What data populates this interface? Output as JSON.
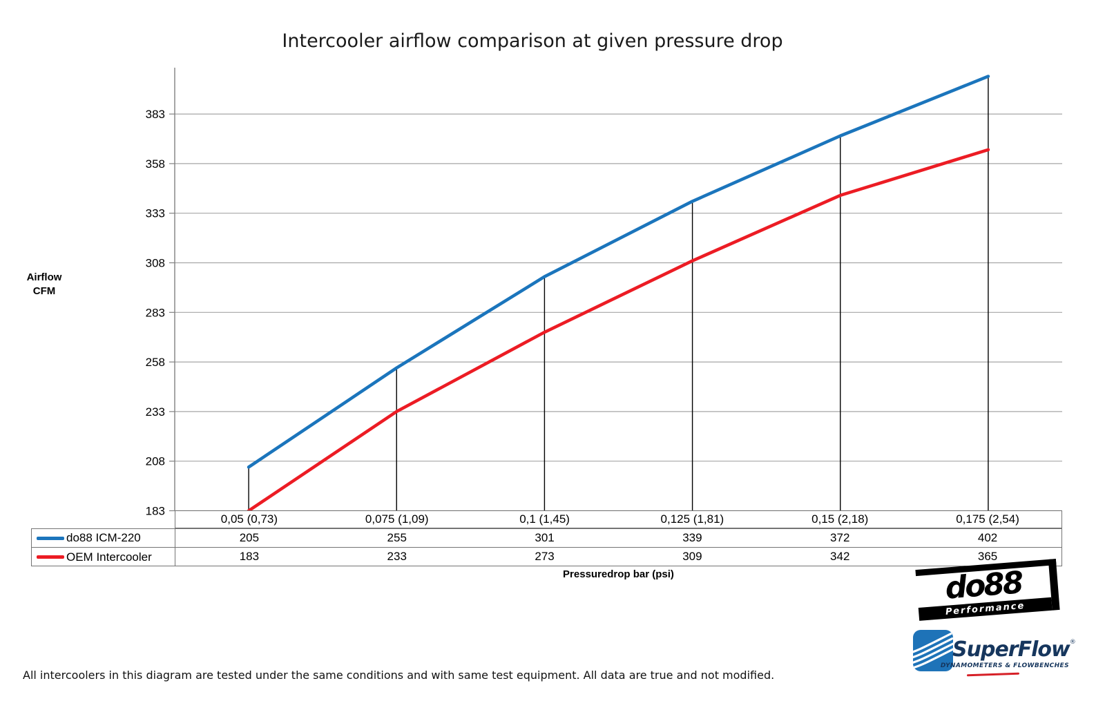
{
  "title": "Intercooler airflow comparison at given pressure drop",
  "y_axis": {
    "label_line1": "Airflow",
    "label_line2": "CFM"
  },
  "x_axis": {
    "label": "Pressuredrop bar (psi)"
  },
  "chart_data": {
    "type": "line",
    "title": "Intercooler airflow comparison at given pressure drop",
    "categories": [
      "0,05 (0,73)",
      "0,075 (1,09)",
      "0,1 (1,45)",
      "0,125 (1,81)",
      "0,15 (2,18)",
      "0,175 (2,54)"
    ],
    "series": [
      {
        "name": "do88 ICM-220",
        "color": "#1B75BC",
        "values": [
          205,
          255,
          301,
          339,
          372,
          402
        ]
      },
      {
        "name": "OEM Intercooler",
        "color": "#EC1C24",
        "values": [
          183,
          233,
          273,
          309,
          342,
          365
        ]
      }
    ],
    "xlabel": "Pressuredrop bar (psi)",
    "ylabel": "Airflow CFM",
    "yticks": [
      183,
      208,
      233,
      258,
      283,
      308,
      333,
      358,
      383
    ],
    "ylim": [
      183,
      407
    ],
    "grid": "horizontal-gray",
    "gridline_color": "#A6A6A6",
    "axis_color": "#808080",
    "legend_position": "table-left",
    "annotations": "vertical black drop lines from do88 series points down to category axis"
  },
  "logos": {
    "do88": {
      "wordmark": "do88",
      "subtitle": "Performance"
    },
    "superflow": {
      "wordmark": "SuperFlow",
      "reg": "®",
      "tagline": "DYNAMOMETERS & FLOWBENCHES"
    }
  },
  "footer": {
    "disclaimer": "All intercoolers in this diagram are tested under the same conditions and with same test equipment. All data are true and not modified."
  }
}
